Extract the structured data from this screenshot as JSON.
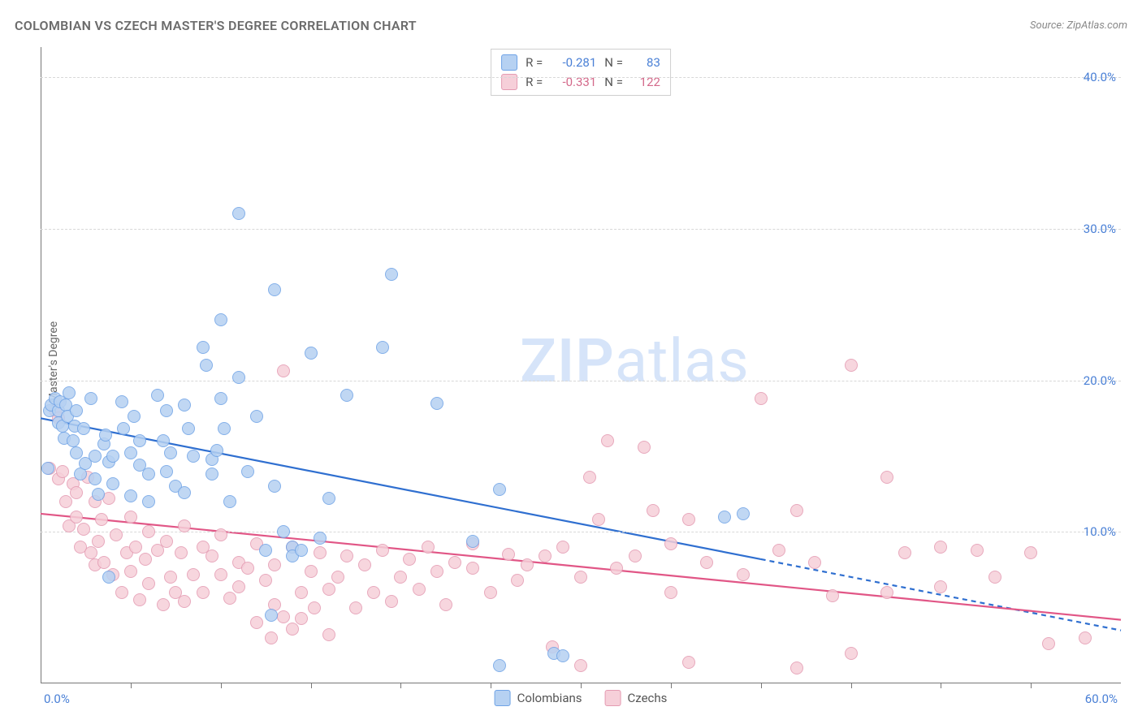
{
  "title": "COLOMBIAN VS CZECH MASTER'S DEGREE CORRELATION CHART",
  "source_label": "Source: ",
  "source_value": "ZipAtlas.com",
  "watermark_zip": "ZIP",
  "watermark_atlas": "atlas",
  "yaxis_title": "Master's Degree",
  "chart": {
    "type": "scatter",
    "xlim": [
      0,
      60
    ],
    "ylim": [
      0,
      42
    ],
    "x_tick_step": 5,
    "y_gridlines": [
      10,
      20,
      30,
      40
    ],
    "y_tick_labels": [
      "10.0%",
      "20.0%",
      "30.0%",
      "40.0%"
    ],
    "x_origin_label": "0.0%",
    "x_end_label": "60.0%",
    "background_color": "#ffffff",
    "grid_color": "#d8d8d8",
    "axis_color": "#777777",
    "tick_color": "#777777",
    "label_color": "#4a80d6",
    "point_radius": 8,
    "point_border_width": 1.2,
    "trend_line_width": 2.2,
    "trend_dash_pattern": "6 5",
    "series": [
      {
        "name": "Colombians",
        "fill_color": "#b6d1f2",
        "border_color": "#6fa3e6",
        "line_color": "#2f6fd0",
        "trend": {
          "x1": 0,
          "y1": 17.5,
          "x2": 40,
          "y2": 8.2,
          "dash_to_x": 60,
          "dash_to_y": 3.5
        },
        "r_label": "R =",
        "r_value": "-0.281",
        "n_label": "N =",
        "n_value": "83",
        "points": [
          [
            0.5,
            18.0
          ],
          [
            0.6,
            18.4
          ],
          [
            0.8,
            18.8
          ],
          [
            1.0,
            17.2
          ],
          [
            1.0,
            18.0
          ],
          [
            1.1,
            18.6
          ],
          [
            1.2,
            17.0
          ],
          [
            1.3,
            16.2
          ],
          [
            1.4,
            18.4
          ],
          [
            1.5,
            17.6
          ],
          [
            1.6,
            19.2
          ],
          [
            1.8,
            16.0
          ],
          [
            1.9,
            17.0
          ],
          [
            2.0,
            15.2
          ],
          [
            2.0,
            18.0
          ],
          [
            2.2,
            13.8
          ],
          [
            2.4,
            16.8
          ],
          [
            2.5,
            14.5
          ],
          [
            2.8,
            18.8
          ],
          [
            3.0,
            15.0
          ],
          [
            3.0,
            13.5
          ],
          [
            3.2,
            12.5
          ],
          [
            3.5,
            15.8
          ],
          [
            3.6,
            16.4
          ],
          [
            3.8,
            14.6
          ],
          [
            3.8,
            7.0
          ],
          [
            4.0,
            13.2
          ],
          [
            4.0,
            15.0
          ],
          [
            4.5,
            18.6
          ],
          [
            4.6,
            16.8
          ],
          [
            5.0,
            15.2
          ],
          [
            5.0,
            12.4
          ],
          [
            5.2,
            17.6
          ],
          [
            5.5,
            14.4
          ],
          [
            5.5,
            16.0
          ],
          [
            6.0,
            13.8
          ],
          [
            6.0,
            12.0
          ],
          [
            6.5,
            19.0
          ],
          [
            6.8,
            16.0
          ],
          [
            7.0,
            14.0
          ],
          [
            7.0,
            18.0
          ],
          [
            7.2,
            15.2
          ],
          [
            7.5,
            13.0
          ],
          [
            8.0,
            18.4
          ],
          [
            8.0,
            12.6
          ],
          [
            8.2,
            16.8
          ],
          [
            8.5,
            15.0
          ],
          [
            9.0,
            22.2
          ],
          [
            9.2,
            21.0
          ],
          [
            9.5,
            13.8
          ],
          [
            9.5,
            14.8
          ],
          [
            9.8,
            15.4
          ],
          [
            10.0,
            24.0
          ],
          [
            10.0,
            18.8
          ],
          [
            10.2,
            16.8
          ],
          [
            10.5,
            12.0
          ],
          [
            11.0,
            31.0
          ],
          [
            11.0,
            20.2
          ],
          [
            11.5,
            14.0
          ],
          [
            12.0,
            17.6
          ],
          [
            12.5,
            8.8
          ],
          [
            12.8,
            4.5
          ],
          [
            13.0,
            26.0
          ],
          [
            13.0,
            13.0
          ],
          [
            13.5,
            10.0
          ],
          [
            14.0,
            9.0
          ],
          [
            14.0,
            8.4
          ],
          [
            14.5,
            8.8
          ],
          [
            15.0,
            21.8
          ],
          [
            15.5,
            9.6
          ],
          [
            16.0,
            12.2
          ],
          [
            17.0,
            19.0
          ],
          [
            19.0,
            22.2
          ],
          [
            19.5,
            27.0
          ],
          [
            22.0,
            18.5
          ],
          [
            24.0,
            9.4
          ],
          [
            25.5,
            12.8
          ],
          [
            25.5,
            1.2
          ],
          [
            28.5,
            2.0
          ],
          [
            29.0,
            1.8
          ],
          [
            38.0,
            11.0
          ],
          [
            39.0,
            11.2
          ],
          [
            0.4,
            14.2
          ]
        ]
      },
      {
        "name": "Czechs",
        "fill_color": "#f6cfd9",
        "border_color": "#e49bb2",
        "line_color": "#e15686",
        "trend": {
          "x1": 0,
          "y1": 11.2,
          "x2": 60,
          "y2": 4.2
        },
        "r_label": "R =",
        "r_value": "-0.331",
        "n_label": "N =",
        "n_value": "122",
        "points": [
          [
            0.5,
            14.2
          ],
          [
            0.8,
            18.0
          ],
          [
            1.0,
            17.5
          ],
          [
            1.0,
            13.5
          ],
          [
            1.2,
            14.0
          ],
          [
            1.4,
            12.0
          ],
          [
            1.6,
            10.4
          ],
          [
            1.8,
            13.2
          ],
          [
            2.0,
            11.0
          ],
          [
            2.0,
            12.6
          ],
          [
            2.2,
            9.0
          ],
          [
            2.4,
            10.2
          ],
          [
            2.6,
            13.6
          ],
          [
            2.8,
            8.6
          ],
          [
            3.0,
            12.0
          ],
          [
            3.0,
            7.8
          ],
          [
            3.2,
            9.4
          ],
          [
            3.4,
            10.8
          ],
          [
            3.5,
            8.0
          ],
          [
            3.8,
            12.2
          ],
          [
            4.0,
            7.2
          ],
          [
            4.2,
            9.8
          ],
          [
            4.5,
            6.0
          ],
          [
            4.8,
            8.6
          ],
          [
            5.0,
            11.0
          ],
          [
            5.0,
            7.4
          ],
          [
            5.3,
            9.0
          ],
          [
            5.5,
            5.5
          ],
          [
            5.8,
            8.2
          ],
          [
            6.0,
            10.0
          ],
          [
            6.0,
            6.6
          ],
          [
            6.5,
            8.8
          ],
          [
            6.8,
            5.2
          ],
          [
            7.0,
            9.4
          ],
          [
            7.2,
            7.0
          ],
          [
            7.5,
            6.0
          ],
          [
            7.8,
            8.6
          ],
          [
            8.0,
            10.4
          ],
          [
            8.0,
            5.4
          ],
          [
            8.5,
            7.2
          ],
          [
            9.0,
            9.0
          ],
          [
            9.0,
            6.0
          ],
          [
            9.5,
            8.4
          ],
          [
            10.0,
            7.2
          ],
          [
            10.0,
            9.8
          ],
          [
            10.5,
            5.6
          ],
          [
            11.0,
            8.0
          ],
          [
            11.0,
            6.4
          ],
          [
            11.5,
            7.6
          ],
          [
            12.0,
            9.2
          ],
          [
            12.0,
            4.0
          ],
          [
            12.5,
            6.8
          ],
          [
            12.8,
            3.0
          ],
          [
            13.0,
            7.8
          ],
          [
            13.0,
            5.2
          ],
          [
            13.5,
            4.4
          ],
          [
            13.5,
            20.6
          ],
          [
            14.0,
            9.0
          ],
          [
            14.0,
            3.6
          ],
          [
            14.5,
            6.0
          ],
          [
            14.5,
            4.3
          ],
          [
            15.0,
            7.4
          ],
          [
            15.2,
            5.0
          ],
          [
            15.5,
            8.6
          ],
          [
            16.0,
            6.2
          ],
          [
            16.0,
            3.2
          ],
          [
            16.5,
            7.0
          ],
          [
            17.0,
            8.4
          ],
          [
            17.5,
            5.0
          ],
          [
            18.0,
            7.8
          ],
          [
            18.5,
            6.0
          ],
          [
            19.0,
            8.8
          ],
          [
            19.5,
            5.4
          ],
          [
            20.0,
            7.0
          ],
          [
            20.5,
            8.2
          ],
          [
            21.0,
            6.2
          ],
          [
            21.5,
            9.0
          ],
          [
            22.0,
            7.4
          ],
          [
            22.5,
            5.2
          ],
          [
            23.0,
            8.0
          ],
          [
            24.0,
            7.6
          ],
          [
            24.0,
            9.2
          ],
          [
            25.0,
            6.0
          ],
          [
            26.0,
            8.5
          ],
          [
            26.5,
            6.8
          ],
          [
            27.0,
            7.8
          ],
          [
            28.0,
            8.4
          ],
          [
            28.4,
            2.4
          ],
          [
            29.0,
            9.0
          ],
          [
            30.0,
            7.0
          ],
          [
            30.0,
            1.2
          ],
          [
            30.5,
            13.6
          ],
          [
            31.0,
            10.8
          ],
          [
            31.5,
            16.0
          ],
          [
            32.0,
            7.6
          ],
          [
            33.0,
            8.4
          ],
          [
            33.5,
            15.6
          ],
          [
            34.0,
            11.4
          ],
          [
            35.0,
            9.2
          ],
          [
            35.0,
            6.0
          ],
          [
            36.0,
            10.8
          ],
          [
            36.0,
            1.4
          ],
          [
            37.0,
            8.0
          ],
          [
            39.0,
            7.2
          ],
          [
            40.0,
            18.8
          ],
          [
            41.0,
            8.8
          ],
          [
            42.0,
            11.4
          ],
          [
            42.0,
            1.0
          ],
          [
            43.0,
            8.0
          ],
          [
            44.0,
            5.8
          ],
          [
            45.0,
            2.0
          ],
          [
            45.0,
            21.0
          ],
          [
            47.0,
            6.0
          ],
          [
            47.0,
            13.6
          ],
          [
            48.0,
            8.6
          ],
          [
            50.0,
            9.0
          ],
          [
            50.0,
            6.4
          ],
          [
            52.0,
            8.8
          ],
          [
            53.0,
            7.0
          ],
          [
            55.0,
            8.6
          ],
          [
            56.0,
            2.6
          ],
          [
            58.0,
            3.0
          ]
        ]
      }
    ]
  },
  "legend_bottom": [
    "Colombians",
    "Czechs"
  ]
}
